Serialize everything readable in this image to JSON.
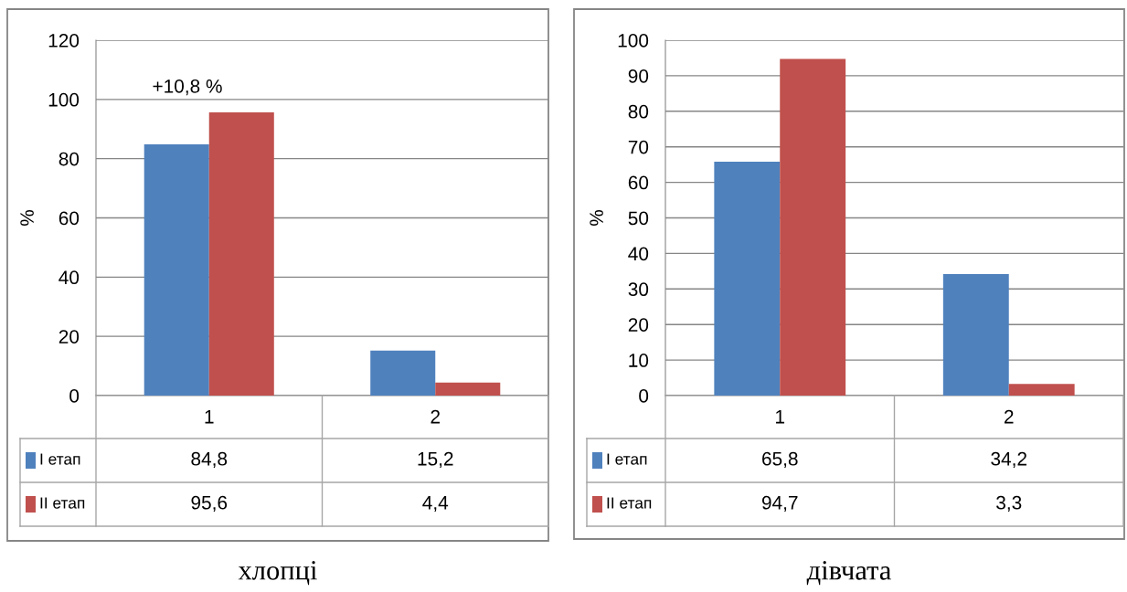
{
  "chart_data": [
    {
      "type": "bar",
      "title": "хлопці",
      "ylabel": "%",
      "categories": [
        "1",
        "2"
      ],
      "series": [
        {
          "name": "I етап",
          "color": "#4f81bd",
          "values": [
            84.8,
            15.2
          ],
          "value_labels": [
            "84,8",
            "15,2"
          ]
        },
        {
          "name": "II етап",
          "color": "#c0504d",
          "values": [
            95.6,
            4.4
          ],
          "value_labels": [
            "95,6",
            "4,4"
          ]
        }
      ],
      "ylim": [
        0,
        120
      ],
      "yticks": [
        0,
        20,
        40,
        60,
        80,
        100,
        120
      ],
      "grid": "y",
      "legend": "bottom",
      "annotations": [
        "+10,8 %"
      ]
    },
    {
      "type": "bar",
      "title": "дівчата",
      "ylabel": "%",
      "categories": [
        "1",
        "2"
      ],
      "series": [
        {
          "name": "I етап",
          "color": "#4f81bd",
          "values": [
            65.8,
            34.2
          ],
          "value_labels": [
            "65,8",
            "34,2"
          ]
        },
        {
          "name": "II етап",
          "color": "#c0504d",
          "values": [
            94.7,
            3.3
          ],
          "value_labels": [
            "94,7",
            "3,3"
          ]
        }
      ],
      "ylim": [
        0,
        100
      ],
      "yticks": [
        0,
        10,
        20,
        30,
        40,
        50,
        60,
        70,
        80,
        90,
        100
      ],
      "grid": "y",
      "legend": "bottom"
    }
  ]
}
